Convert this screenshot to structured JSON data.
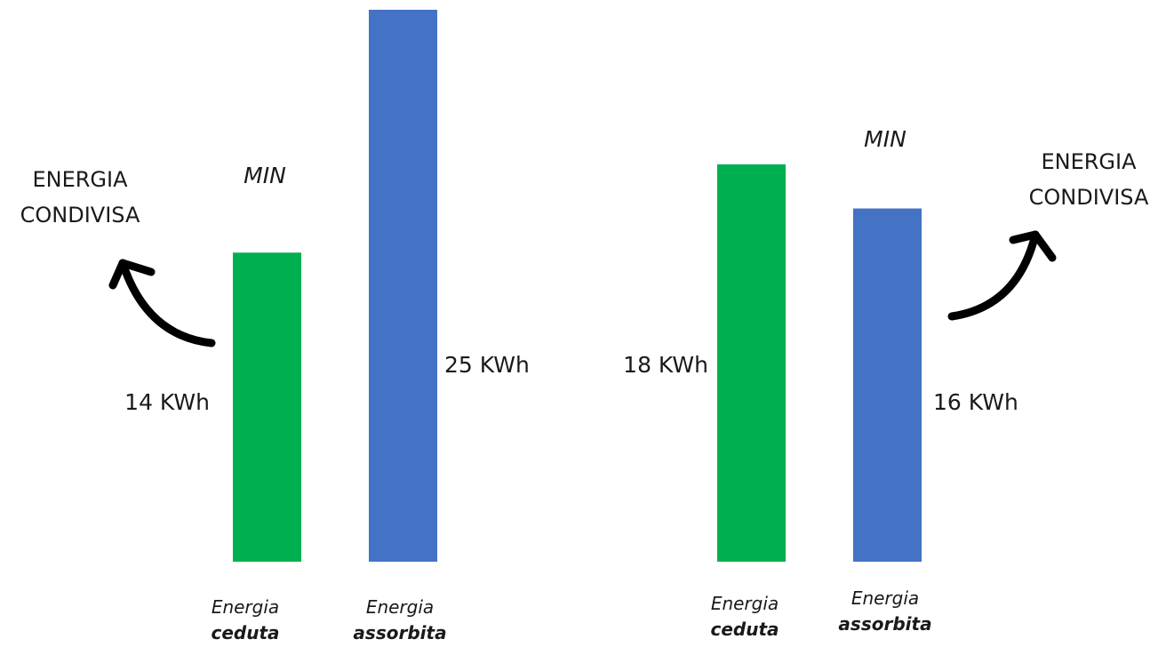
{
  "chart_data": [
    {
      "type": "bar",
      "categories": [
        {
          "line1": "Energia",
          "line2": "ceduta"
        },
        {
          "line1": "Energia",
          "line2": "assorbita"
        }
      ],
      "values": [
        14,
        25
      ],
      "value_labels": [
        "14 KWh",
        "25 KWh"
      ],
      "min_label": "MIN",
      "shared_label": [
        "ENERGIA",
        "CONDIVISA"
      ],
      "colors": [
        "#00b050",
        "#4472c4"
      ]
    },
    {
      "type": "bar",
      "categories": [
        {
          "line1": "Energia",
          "line2": "ceduta"
        },
        {
          "line1": "Energia",
          "line2": "assorbita"
        }
      ],
      "values": [
        18,
        16
      ],
      "value_labels": [
        "18 KWh",
        "16 KWh"
      ],
      "min_label": "MIN",
      "shared_label": [
        "ENERGIA",
        "CONDIVISA"
      ],
      "colors": [
        "#00b050",
        "#4472c4"
      ]
    }
  ]
}
